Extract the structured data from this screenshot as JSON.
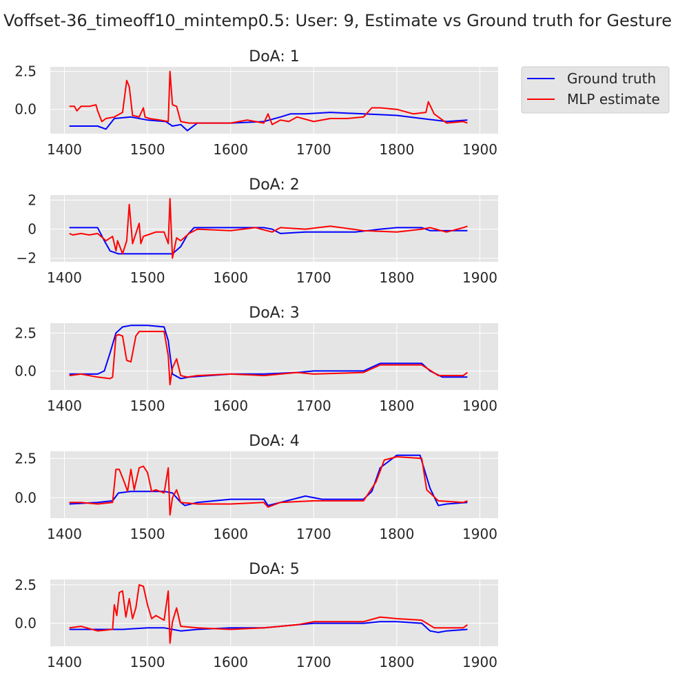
{
  "figure": {
    "title": "Voffset-36_timeoff10_mintemp0.5: User: 9, Estimate vs Ground truth for Gesture"
  },
  "legend": {
    "placement": "outside-right",
    "entries": [
      {
        "label": "Ground truth",
        "color": "#0000ff"
      },
      {
        "label": "MLP estimate",
        "color": "#ff0000"
      }
    ]
  },
  "colors": {
    "axes_background": "#e5e5e5",
    "grid": "#ffffff",
    "ground_truth": "#0000ff",
    "mlp_estimate": "#ff0000"
  },
  "chart_data": [
    {
      "type": "line",
      "title": "DoA: 1",
      "xlim": [
        1383,
        1922
      ],
      "ylim": [
        -1.6,
        2.8
      ],
      "xticks": [
        "1400",
        "1500",
        "1600",
        "1700",
        "1800",
        "1900"
      ],
      "yticks": [
        "0.0",
        "2.5"
      ],
      "grid": true,
      "series": [
        {
          "name": "Ground truth",
          "x": [
            1406,
            1440,
            1450,
            1460,
            1480,
            1500,
            1522,
            1530,
            1540,
            1548,
            1560,
            1600,
            1640,
            1660,
            1672,
            1690,
            1720,
            1760,
            1800,
            1830,
            1860,
            1885
          ],
          "y": [
            -1.1,
            -1.1,
            -1.3,
            -0.6,
            -0.5,
            -0.7,
            -0.8,
            -1.1,
            -1.0,
            -1.4,
            -0.9,
            -0.9,
            -0.8,
            -0.5,
            -0.3,
            -0.3,
            -0.2,
            -0.3,
            -0.4,
            -0.6,
            -0.8,
            -0.7
          ]
        },
        {
          "name": "MLP estimate",
          "x": [
            1406,
            1412,
            1415,
            1420,
            1430,
            1438,
            1440,
            1445,
            1450,
            1460,
            1470,
            1475,
            1478,
            1482,
            1490,
            1495,
            1497,
            1502,
            1515,
            1525,
            1527,
            1530,
            1535,
            1540,
            1550,
            1560,
            1580,
            1600,
            1620,
            1640,
            1645,
            1650,
            1660,
            1670,
            1680,
            1700,
            1720,
            1740,
            1760,
            1770,
            1780,
            1800,
            1820,
            1835,
            1838,
            1845,
            1860,
            1880,
            1885
          ],
          "y": [
            0.2,
            0.2,
            -0.1,
            0.2,
            0.2,
            0.3,
            -0.1,
            -0.8,
            -0.6,
            -0.5,
            -0.2,
            1.9,
            1.5,
            -0.4,
            -0.5,
            0.1,
            -0.5,
            -0.6,
            -0.7,
            -0.8,
            2.5,
            0.3,
            0.2,
            -0.8,
            -0.9,
            -0.9,
            -0.9,
            -0.9,
            -0.7,
            -0.9,
            -0.3,
            -1.0,
            -0.7,
            -0.8,
            -0.5,
            -0.8,
            -0.6,
            -0.6,
            -0.5,
            0.1,
            0.1,
            0.0,
            -0.3,
            -0.2,
            0.5,
            -0.3,
            -0.9,
            -0.8,
            -0.9
          ]
        }
      ]
    },
    {
      "type": "line",
      "title": "DoA: 2",
      "xlim": [
        1383,
        1922
      ],
      "ylim": [
        -2.25,
        2.35
      ],
      "xticks": [
        "1400",
        "1500",
        "1600",
        "1700",
        "1800",
        "1900"
      ],
      "yticks": [
        "−2",
        "0",
        "2"
      ],
      "grid": true,
      "series": [
        {
          "name": "Ground truth",
          "x": [
            1406,
            1440,
            1448,
            1455,
            1465,
            1500,
            1520,
            1530,
            1540,
            1548,
            1556,
            1600,
            1640,
            1650,
            1660,
            1690,
            1750,
            1780,
            1800,
            1830,
            1840,
            1870,
            1885
          ],
          "y": [
            0.1,
            0.1,
            -0.8,
            -1.5,
            -1.7,
            -1.7,
            -1.7,
            -1.7,
            -1.2,
            -0.4,
            0.1,
            0.1,
            0.1,
            0.0,
            -0.3,
            -0.2,
            -0.2,
            0.0,
            0.1,
            0.1,
            -0.1,
            -0.1,
            -0.1
          ]
        },
        {
          "name": "MLP estimate",
          "x": [
            1406,
            1410,
            1420,
            1430,
            1440,
            1450,
            1458,
            1462,
            1464,
            1470,
            1475,
            1478,
            1482,
            1486,
            1490,
            1492,
            1495,
            1500,
            1510,
            1520,
            1525,
            1527,
            1530,
            1535,
            1540,
            1550,
            1560,
            1600,
            1630,
            1650,
            1660,
            1690,
            1720,
            1760,
            1800,
            1830,
            1840,
            1860,
            1880,
            1885
          ],
          "y": [
            -0.3,
            -0.4,
            -0.3,
            -0.4,
            -0.3,
            -0.8,
            -0.5,
            -1.5,
            -0.8,
            -1.7,
            -0.8,
            1.7,
            -1.0,
            -0.3,
            0.4,
            -1.0,
            -0.5,
            -0.4,
            -0.2,
            -0.2,
            -1.0,
            2.1,
            -2.0,
            -0.6,
            -0.8,
            -0.3,
            0.0,
            -0.1,
            0.1,
            -0.2,
            0.1,
            0.0,
            0.2,
            -0.1,
            -0.2,
            0.0,
            0.1,
            -0.2,
            0.1,
            0.2
          ]
        }
      ]
    },
    {
      "type": "line",
      "title": "DoA: 3",
      "xlim": [
        1383,
        1922
      ],
      "ylim": [
        -1.25,
        3.15
      ],
      "xticks": [
        "1400",
        "1500",
        "1600",
        "1700",
        "1800",
        "1900"
      ],
      "yticks": [
        "0.0",
        "2.5"
      ],
      "grid": true,
      "series": [
        {
          "name": "Ground truth",
          "x": [
            1406,
            1440,
            1448,
            1455,
            1462,
            1470,
            1480,
            1500,
            1520,
            1525,
            1530,
            1540,
            1550,
            1600,
            1640,
            1680,
            1700,
            1760,
            1780,
            1800,
            1830,
            1840,
            1855,
            1885
          ],
          "y": [
            -0.2,
            -0.2,
            0.0,
            1.2,
            2.5,
            2.9,
            3.0,
            3.0,
            2.9,
            2.0,
            -0.2,
            -0.5,
            -0.4,
            -0.2,
            -0.2,
            -0.1,
            0.0,
            0.0,
            0.5,
            0.5,
            0.5,
            0.0,
            -0.4,
            -0.4
          ]
        },
        {
          "name": "MLP estimate",
          "x": [
            1406,
            1420,
            1440,
            1455,
            1458,
            1462,
            1465,
            1470,
            1475,
            1480,
            1486,
            1490,
            1500,
            1520,
            1525,
            1527,
            1530,
            1535,
            1540,
            1548,
            1560,
            1600,
            1640,
            1680,
            1700,
            1760,
            1780,
            1800,
            1830,
            1850,
            1880,
            1885
          ],
          "y": [
            -0.3,
            -0.2,
            -0.4,
            -0.5,
            -0.4,
            2.3,
            2.4,
            2.3,
            0.7,
            0.6,
            2.3,
            2.6,
            2.6,
            2.6,
            1.0,
            -0.9,
            0.2,
            0.8,
            -0.3,
            -0.4,
            -0.3,
            -0.2,
            -0.3,
            -0.1,
            -0.2,
            -0.1,
            0.4,
            0.4,
            0.4,
            -0.3,
            -0.3,
            -0.1
          ]
        }
      ]
    },
    {
      "type": "line",
      "title": "DoA: 4",
      "xlim": [
        1383,
        1922
      ],
      "ylim": [
        -1.3,
        2.95
      ],
      "xticks": [
        "1400",
        "1500",
        "1600",
        "1700",
        "1800",
        "1900"
      ],
      "yticks": [
        "0.0",
        "2.5"
      ],
      "grid": true,
      "series": [
        {
          "name": "Ground truth",
          "x": [
            1406,
            1440,
            1458,
            1465,
            1480,
            1500,
            1520,
            1530,
            1540,
            1545,
            1560,
            1600,
            1640,
            1645,
            1660,
            1690,
            1710,
            1760,
            1770,
            1780,
            1800,
            1828,
            1840,
            1850,
            1860,
            1885
          ],
          "y": [
            -0.4,
            -0.3,
            -0.2,
            0.3,
            0.4,
            0.4,
            0.4,
            0.3,
            -0.3,
            -0.5,
            -0.3,
            -0.1,
            -0.1,
            -0.5,
            -0.3,
            0.1,
            -0.1,
            -0.1,
            0.4,
            1.9,
            2.7,
            2.7,
            0.6,
            -0.5,
            -0.4,
            -0.3
          ]
        },
        {
          "name": "MLP estimate",
          "x": [
            1406,
            1420,
            1440,
            1458,
            1462,
            1466,
            1472,
            1476,
            1480,
            1484,
            1490,
            1495,
            1500,
            1505,
            1510,
            1520,
            1525,
            1527,
            1530,
            1535,
            1540,
            1560,
            1600,
            1640,
            1645,
            1660,
            1700,
            1760,
            1775,
            1785,
            1800,
            1830,
            1836,
            1850,
            1880,
            1885
          ],
          "y": [
            -0.3,
            -0.3,
            -0.4,
            -0.3,
            1.8,
            1.8,
            1.0,
            0.4,
            1.8,
            0.5,
            1.9,
            2.0,
            1.6,
            0.4,
            0.5,
            0.3,
            1.9,
            -1.1,
            0.0,
            0.5,
            -0.3,
            -0.4,
            -0.4,
            -0.3,
            -0.6,
            -0.3,
            -0.2,
            -0.2,
            1.0,
            2.4,
            2.6,
            2.5,
            0.5,
            -0.2,
            -0.3,
            -0.2
          ]
        }
      ]
    },
    {
      "type": "line",
      "title": "DoA: 5",
      "xlim": [
        1383,
        1922
      ],
      "ylim": [
        -1.5,
        2.85
      ],
      "xticks": [
        "1400",
        "1500",
        "1600",
        "1700",
        "1800",
        "1900"
      ],
      "yticks": [
        "0.0",
        "2.5"
      ],
      "grid": true,
      "series": [
        {
          "name": "Ground truth",
          "x": [
            1406,
            1440,
            1460,
            1470,
            1500,
            1520,
            1530,
            1540,
            1560,
            1600,
            1640,
            1680,
            1700,
            1760,
            1780,
            1800,
            1830,
            1840,
            1850,
            1860,
            1885
          ],
          "y": [
            -0.4,
            -0.4,
            -0.4,
            -0.4,
            -0.3,
            -0.3,
            -0.4,
            -0.5,
            -0.4,
            -0.3,
            -0.3,
            -0.1,
            0.0,
            0.0,
            0.1,
            0.1,
            0.0,
            -0.5,
            -0.6,
            -0.5,
            -0.4
          ]
        },
        {
          "name": "MLP estimate",
          "x": [
            1406,
            1420,
            1440,
            1458,
            1460,
            1463,
            1466,
            1470,
            1474,
            1478,
            1482,
            1486,
            1490,
            1495,
            1500,
            1505,
            1510,
            1520,
            1525,
            1527,
            1530,
            1535,
            1540,
            1560,
            1600,
            1640,
            1680,
            1700,
            1760,
            1780,
            1800,
            1830,
            1845,
            1860,
            1880,
            1885
          ],
          "y": [
            -0.3,
            -0.2,
            -0.5,
            -0.4,
            1.2,
            0.5,
            2.0,
            2.1,
            0.4,
            1.6,
            0.3,
            1.0,
            2.5,
            2.4,
            1.2,
            0.3,
            0.5,
            0.2,
            2.1,
            -1.3,
            0.1,
            1.0,
            -0.2,
            -0.3,
            -0.4,
            -0.3,
            -0.1,
            0.1,
            0.1,
            0.4,
            0.3,
            0.2,
            -0.3,
            -0.3,
            -0.3,
            -0.1
          ]
        }
      ]
    }
  ]
}
